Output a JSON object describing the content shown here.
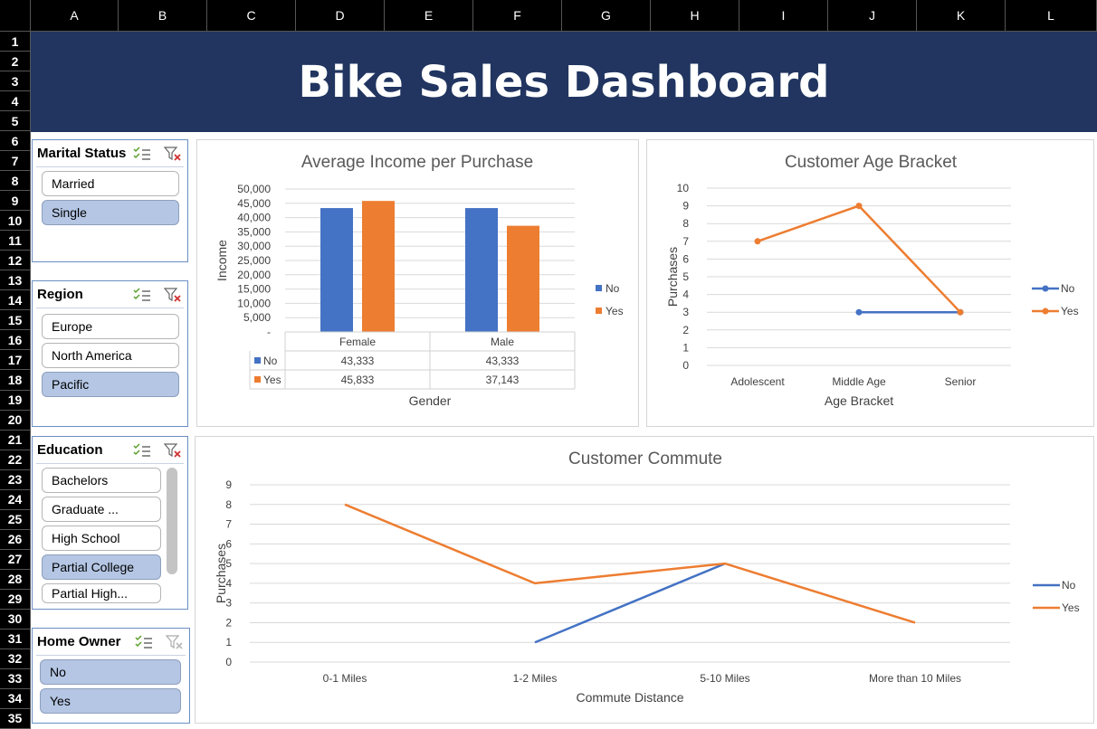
{
  "sheet": {
    "columns": [
      "A",
      "B",
      "C",
      "D",
      "E",
      "F",
      "G",
      "H",
      "I",
      "J",
      "K",
      "L"
    ],
    "rows": [
      "1",
      "2",
      "3",
      "4",
      "5",
      "6",
      "7",
      "8",
      "9",
      "10",
      "11",
      "12",
      "13",
      "14",
      "15",
      "16",
      "17",
      "18",
      "19",
      "20",
      "21",
      "22",
      "23",
      "24",
      "25",
      "26",
      "27",
      "28",
      "29",
      "30",
      "31",
      "32",
      "33",
      "34",
      "35"
    ]
  },
  "banner": {
    "title": "Bike Sales Dashboard"
  },
  "slicers": {
    "marital": {
      "title": "Marital Status",
      "items": [
        {
          "label": "Married",
          "selected": false
        },
        {
          "label": "Single",
          "selected": true
        }
      ]
    },
    "region": {
      "title": "Region",
      "items": [
        {
          "label": "Europe",
          "selected": false
        },
        {
          "label": "North America",
          "selected": false
        },
        {
          "label": "Pacific",
          "selected": true
        }
      ]
    },
    "education": {
      "title": "Education",
      "items": [
        {
          "label": "Bachelors",
          "selected": false
        },
        {
          "label": "Graduate ...",
          "selected": false
        },
        {
          "label": "High School",
          "selected": false
        },
        {
          "label": "Partial College",
          "selected": true
        },
        {
          "label": "Partial High...",
          "selected": false
        }
      ]
    },
    "homeowner": {
      "title": "Home Owner",
      "items": [
        {
          "label": "No",
          "selected": true
        },
        {
          "label": "Yes",
          "selected": true
        }
      ]
    }
  },
  "colors": {
    "banner": "#213560",
    "no": "#4472c4",
    "yes": "#ed7d31",
    "slicer_selected": "#b4c6e4",
    "gridline": "#d9d9d9"
  },
  "icons": {
    "multi_select": "multi-select-icon",
    "clear_filter": "clear-filter-icon"
  },
  "chart_data": [
    {
      "type": "bar",
      "title": "Average Income per Purchase",
      "xlabel": "Gender",
      "ylabel": "Income",
      "categories": [
        "Female",
        "Male"
      ],
      "series": [
        {
          "name": "No",
          "values": [
            43333,
            43333
          ]
        },
        {
          "name": "Yes",
          "values": [
            45833,
            37143
          ]
        }
      ],
      "ylim": [
        0,
        50000
      ],
      "yticks": [
        "-",
        "5,000",
        "10,000",
        "15,000",
        "20,000",
        "25,000",
        "30,000",
        "35,000",
        "40,000",
        "45,000",
        "50,000"
      ],
      "table": [
        {
          "series": "No",
          "cells": [
            "43,333",
            "43,333"
          ]
        },
        {
          "series": "Yes",
          "cells": [
            "45,833",
            "37,143"
          ]
        }
      ],
      "legend": "right",
      "grid": true
    },
    {
      "type": "line",
      "title": "Customer Age Bracket",
      "xlabel": "Age Bracket",
      "ylabel": "Purchases",
      "categories": [
        "Adolescent",
        "Middle Age",
        "Senior"
      ],
      "series": [
        {
          "name": "No",
          "values": [
            null,
            3,
            3
          ]
        },
        {
          "name": "Yes",
          "values": [
            7,
            9,
            3
          ]
        }
      ],
      "ylim": [
        0,
        10
      ],
      "yticks": [
        "0",
        "1",
        "2",
        "3",
        "4",
        "5",
        "6",
        "7",
        "8",
        "9",
        "10"
      ],
      "legend": "right",
      "markers": true,
      "grid": true
    },
    {
      "type": "line",
      "title": "Customer Commute",
      "xlabel": "Commute Distance",
      "ylabel": "Purchases",
      "categories": [
        "0-1 Miles",
        "1-2 Miles",
        "5-10 Miles",
        "More than 10 Miles"
      ],
      "series": [
        {
          "name": "No",
          "values": [
            null,
            1,
            5,
            null
          ]
        },
        {
          "name": "Yes",
          "values": [
            8,
            4,
            5,
            2
          ]
        }
      ],
      "ylim": [
        0,
        9
      ],
      "yticks": [
        "0",
        "1",
        "2",
        "3",
        "4",
        "5",
        "6",
        "7",
        "8",
        "9"
      ],
      "legend": "right",
      "markers": false,
      "grid": true
    }
  ]
}
